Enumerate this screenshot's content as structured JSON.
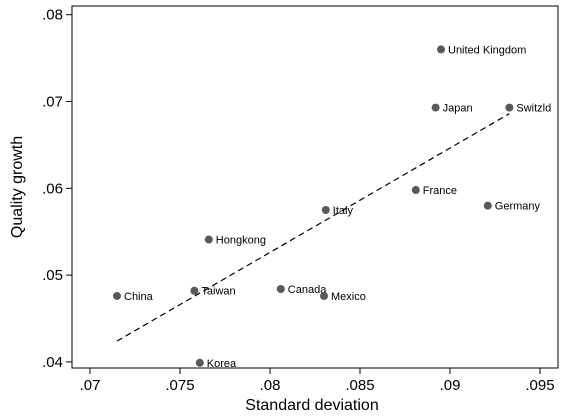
{
  "chart_data": {
    "type": "scatter",
    "xlabel": "Standard deviation",
    "ylabel": "Quality growth",
    "xlim": [
      0.069,
      0.096
    ],
    "ylim": [
      0.0393,
      0.081
    ],
    "xticks": [
      0.07,
      0.075,
      0.08,
      0.085,
      0.09,
      0.095
    ],
    "xtick_labels": [
      ".07",
      ".075",
      ".08",
      ".085",
      ".09",
      ".095"
    ],
    "yticks": [
      0.04,
      0.05,
      0.06,
      0.07,
      0.08
    ],
    "ytick_labels": [
      ".04",
      ".05",
      ".06",
      ".07",
      ".08"
    ],
    "grid": false,
    "marker_color": "#595959",
    "points": [
      {
        "label": "United Kingdom",
        "x": 0.0895,
        "y": 0.076
      },
      {
        "label": "Japan",
        "x": 0.0892,
        "y": 0.0693
      },
      {
        "label": "Switzld",
        "x": 0.0933,
        "y": 0.0693
      },
      {
        "label": "France",
        "x": 0.0881,
        "y": 0.0598
      },
      {
        "label": "Germany",
        "x": 0.0921,
        "y": 0.058
      },
      {
        "label": "Italy",
        "x": 0.0831,
        "y": 0.0575
      },
      {
        "label": "Hongkong",
        "x": 0.0766,
        "y": 0.0541
      },
      {
        "label": "Canada",
        "x": 0.0806,
        "y": 0.0484
      },
      {
        "label": "Taiwan",
        "x": 0.0758,
        "y": 0.0482
      },
      {
        "label": "Mexico",
        "x": 0.083,
        "y": 0.0476
      },
      {
        "label": "China",
        "x": 0.0715,
        "y": 0.0476
      },
      {
        "label": "Korea",
        "x": 0.0761,
        "y": 0.0399
      }
    ],
    "fit_line": {
      "x": [
        0.0715,
        0.0933
      ],
      "y": [
        0.0424,
        0.0686
      ]
    }
  }
}
